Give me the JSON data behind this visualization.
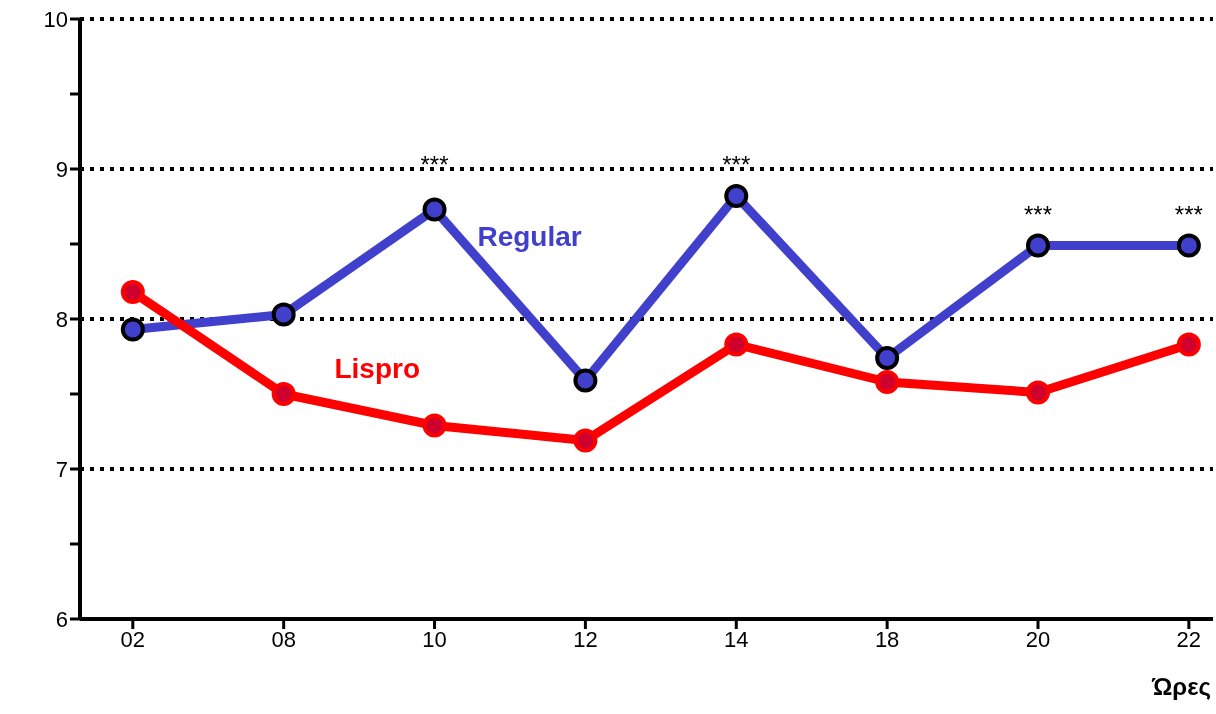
{
  "chart_data": {
    "type": "line",
    "xlabel": "Ώρες",
    "categories": [
      "02",
      "08",
      "10",
      "12",
      "14",
      "18",
      "20",
      "22"
    ],
    "series": [
      {
        "name": "Regular",
        "color": "#4040cc",
        "values": [
          7.93,
          8.03,
          8.73,
          7.59,
          8.82,
          7.74,
          8.49,
          8.49
        ]
      },
      {
        "name": "Lispro",
        "color": "#ff0000",
        "values": [
          8.18,
          7.5,
          7.29,
          7.19,
          7.83,
          7.58,
          7.51,
          7.83
        ]
      }
    ],
    "ylim": [
      6,
      10
    ],
    "yticks": [
      6,
      {
        "value": 6.5,
        "label": null
      },
      7,
      {
        "value": 7.5,
        "label": null
      },
      8,
      {
        "value": 8.5,
        "label": null
      },
      9,
      {
        "value": 9.5,
        "label": null
      },
      10
    ],
    "grid": "y",
    "legend": false,
    "marker": "circle",
    "line_style": "solid",
    "annotations": [
      "***",
      "***",
      "***",
      "***"
    ]
  }
}
